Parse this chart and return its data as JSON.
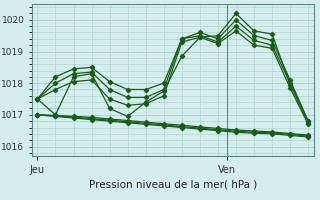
{
  "background_color": "#d4eeed",
  "grid_color": "#a8cece",
  "line_color": "#1a5c1a",
  "title": "Pression niveau de la mer( hPa )",
  "xlabel_jeu": "Jeu",
  "xlabel_ven": "Ven",
  "ylim": [
    1015.7,
    1020.5
  ],
  "yticks": [
    1016,
    1017,
    1018,
    1019,
    1020
  ],
  "series": [
    [
      1017.5,
      1017.0,
      1018.2,
      1018.3,
      1017.2,
      1016.95,
      1017.4,
      1017.75,
      1018.85,
      1019.45,
      1019.5,
      1020.2,
      1019.65,
      1019.55,
      1017.95,
      1016.8
    ],
    [
      1017.0,
      1016.95,
      1016.9,
      1016.85,
      1016.8,
      1016.75,
      1016.7,
      1016.65,
      1016.6,
      1016.55,
      1016.5,
      1016.45,
      1016.42,
      1016.4,
      1016.35,
      1016.3
    ],
    [
      1017.0,
      1016.97,
      1016.93,
      1016.88,
      1016.83,
      1016.78,
      1016.73,
      1016.68,
      1016.63,
      1016.58,
      1016.53,
      1016.48,
      1016.45,
      1016.43,
      1016.38,
      1016.33
    ],
    [
      1017.0,
      1016.98,
      1016.95,
      1016.92,
      1016.87,
      1016.82,
      1016.77,
      1016.72,
      1016.67,
      1016.62,
      1016.57,
      1016.52,
      1016.49,
      1016.46,
      1016.41,
      1016.36
    ],
    [
      1017.5,
      1017.8,
      1018.05,
      1018.1,
      1017.5,
      1017.3,
      1017.35,
      1017.6,
      1019.3,
      1019.45,
      1019.25,
      1019.65,
      1019.2,
      1019.1,
      1017.85,
      1016.7
    ],
    [
      1017.5,
      1018.0,
      1018.3,
      1018.35,
      1017.8,
      1017.55,
      1017.55,
      1017.8,
      1019.4,
      1019.5,
      1019.3,
      1019.8,
      1019.35,
      1019.2,
      1018.0,
      1016.75
    ],
    [
      1017.5,
      1018.2,
      1018.45,
      1018.5,
      1018.05,
      1017.8,
      1017.8,
      1018.0,
      1019.4,
      1019.6,
      1019.4,
      1020.0,
      1019.5,
      1019.35,
      1018.1,
      1016.8
    ]
  ],
  "n_points": 16,
  "ven_tick_idx": 10.5,
  "marker_style": "D",
  "marker_size": 2.2,
  "linewidth": 0.9
}
